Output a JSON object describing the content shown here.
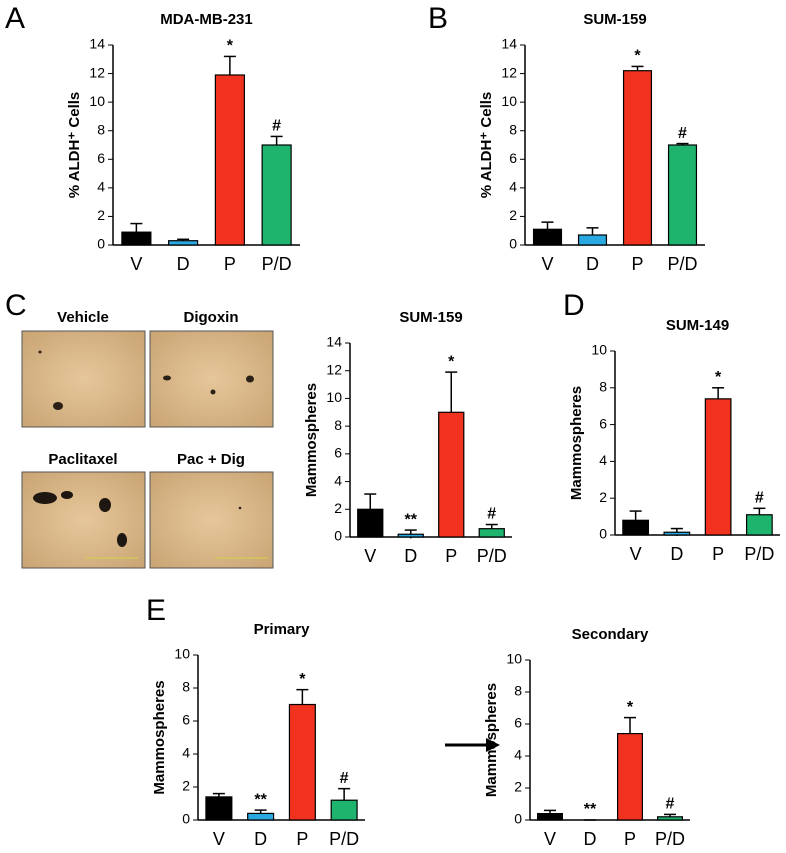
{
  "micrographs": [
    "Vehicle",
    "Digoxin",
    "Paclitaxel",
    "Pac + Dig"
  ],
  "chart_data": [
    {
      "type": "bar",
      "panel": "A",
      "title": "MDA-MB-231",
      "ylabel": "% ALDH⁺ Cells",
      "categories": [
        "V",
        "D",
        "P",
        "P/D"
      ],
      "values": [
        0.9,
        0.3,
        11.9,
        7.0
      ],
      "errors": [
        0.6,
        0.1,
        1.3,
        0.6
      ],
      "annotations": [
        null,
        null,
        "*",
        "#"
      ],
      "colors": [
        "#000000",
        "#29a9e0",
        "#f0321e",
        "#1fb46e"
      ],
      "ylim": [
        0,
        14
      ],
      "yticks": [
        0,
        2,
        4,
        6,
        8,
        10,
        12,
        14
      ]
    },
    {
      "type": "bar",
      "panel": "B",
      "title": "SUM-159",
      "ylabel": "%  ALDH⁺ Cells",
      "categories": [
        "V",
        "D",
        "P",
        "P/D"
      ],
      "values": [
        1.1,
        0.7,
        12.2,
        7.0
      ],
      "errors": [
        0.5,
        0.5,
        0.3,
        0.1
      ],
      "annotations": [
        null,
        null,
        "*",
        "#"
      ],
      "colors": [
        "#000000",
        "#29a9e0",
        "#f0321e",
        "#1fb46e"
      ],
      "ylim": [
        0,
        14
      ],
      "yticks": [
        0,
        2,
        4,
        6,
        8,
        10,
        12,
        14
      ]
    },
    {
      "type": "bar",
      "panel": "C",
      "title": "SUM-159",
      "ylabel": "Mammospheres",
      "categories": [
        "V",
        "D",
        "P",
        "P/D"
      ],
      "values": [
        2.0,
        0.2,
        9.0,
        0.6
      ],
      "errors": [
        1.1,
        0.3,
        2.9,
        0.3
      ],
      "annotations": [
        null,
        "**",
        "*",
        "#"
      ],
      "colors": [
        "#000000",
        "#29a9e0",
        "#f0321e",
        "#1fb46e"
      ],
      "ylim": [
        0,
        14
      ],
      "yticks": [
        0,
        2,
        4,
        6,
        8,
        10,
        12,
        14
      ]
    },
    {
      "type": "bar",
      "panel": "D",
      "title": "SUM-149",
      "ylabel": "Mammospheres",
      "categories": [
        "V",
        "D",
        "P",
        "P/D"
      ],
      "values": [
        0.8,
        0.15,
        7.4,
        1.1
      ],
      "errors": [
        0.5,
        0.2,
        0.6,
        0.35
      ],
      "annotations": [
        null,
        null,
        "*",
        "#"
      ],
      "colors": [
        "#000000",
        "#29a9e0",
        "#f0321e",
        "#1fb46e"
      ],
      "ylim": [
        0,
        10
      ],
      "yticks": [
        0,
        2,
        4,
        6,
        8,
        10
      ]
    },
    {
      "type": "bar",
      "panel": "E",
      "title": "Primary",
      "ylabel": "Mammospheres",
      "categories": [
        "V",
        "D",
        "P",
        "P/D"
      ],
      "values": [
        1.4,
        0.4,
        7.0,
        1.2
      ],
      "errors": [
        0.2,
        0.2,
        0.9,
        0.7
      ],
      "annotations": [
        null,
        "**",
        "*",
        "#"
      ],
      "colors": [
        "#000000",
        "#29a9e0",
        "#f0321e",
        "#1fb46e"
      ],
      "ylim": [
        0,
        10
      ],
      "yticks": [
        0,
        2,
        4,
        6,
        8,
        10
      ]
    },
    {
      "type": "bar",
      "title": "Secondary",
      "ylabel": "Mammospheres",
      "categories": [
        "V",
        "D",
        "P",
        "P/D"
      ],
      "values": [
        0.4,
        0.0,
        5.4,
        0.2
      ],
      "errors": [
        0.2,
        0.0,
        1.0,
        0.15
      ],
      "annotations": [
        null,
        "**",
        "*",
        "#"
      ],
      "colors": [
        "#000000",
        "#29a9e0",
        "#f0321e",
        "#1fb46e"
      ],
      "ylim": [
        0,
        10
      ],
      "yticks": [
        0,
        2,
        4,
        6,
        8,
        10
      ]
    }
  ]
}
